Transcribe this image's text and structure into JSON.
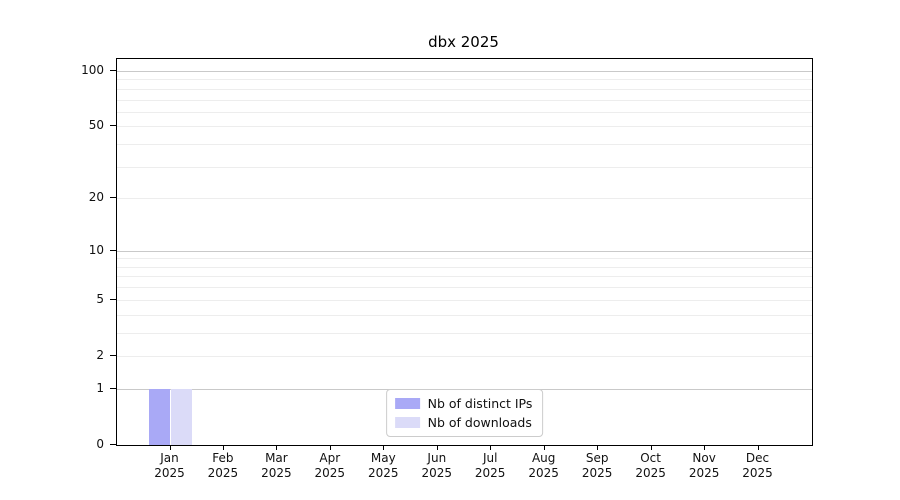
{
  "chart_data": {
    "type": "bar",
    "title": "dbx 2025",
    "x_tick_month_labels": [
      "Jan",
      "Feb",
      "Mar",
      "Apr",
      "May",
      "Jun",
      "Jul",
      "Aug",
      "Sep",
      "Oct",
      "Nov",
      "Dec"
    ],
    "x_tick_year_label": "2025",
    "series": [
      {
        "name": "Nb of distinct IPs",
        "color": "#a9a9f6",
        "values": [
          1,
          0,
          0,
          0,
          0,
          0,
          0,
          0,
          0,
          0,
          0,
          0
        ]
      },
      {
        "name": "Nb of downloads",
        "color": "#dbdbf8",
        "values": [
          1,
          0,
          0,
          0,
          0,
          0,
          0,
          0,
          0,
          0,
          0,
          0
        ]
      }
    ],
    "y_axis": {
      "scale": "log1p",
      "min": 0,
      "max": 116,
      "tick_values": [
        0,
        1,
        2,
        5,
        10,
        20,
        50,
        100
      ],
      "major_gridlines": [
        1,
        10,
        100
      ],
      "minor_gridlines": [
        2,
        3,
        4,
        5,
        6,
        7,
        8,
        9,
        20,
        30,
        40,
        50,
        60,
        70,
        80,
        90
      ]
    },
    "legend": {
      "position": "lower center"
    },
    "colors": {
      "major_grid": "#c9c9c9",
      "minor_grid": "#ededed",
      "axis": "#000000",
      "background": "#ffffff"
    }
  }
}
